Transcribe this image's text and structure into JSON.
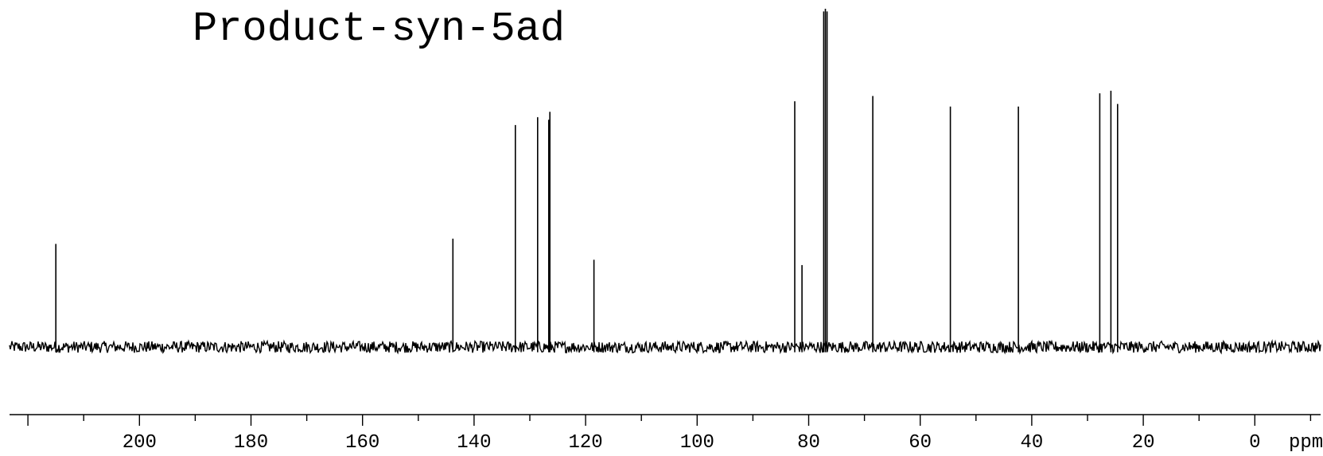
{
  "chart_data": {
    "type": "line",
    "title": "Product-syn-5ad",
    "xlabel": "ppm",
    "ylabel": "",
    "x_reversed": true,
    "xlim": [
      223.3,
      -11.8
    ],
    "ylim": [
      -0.2,
      1.3
    ],
    "grid": false,
    "legend": "none",
    "major_ticks": [
      200,
      180,
      160,
      140,
      120,
      100,
      80,
      60,
      40,
      20,
      0
    ],
    "tick_labels": [
      "200",
      "180",
      "160",
      "140",
      "120",
      "100",
      "80",
      "60",
      "40",
      "20",
      "0"
    ],
    "minor_tick_step": 10,
    "series": [
      {
        "peaks": [
          {
            "ppm": 215.0,
            "intensity": 0.39
          },
          {
            "ppm": 143.8,
            "intensity": 0.41
          },
          {
            "ppm": 132.6,
            "intensity": 0.84
          },
          {
            "ppm": 128.6,
            "intensity": 0.87
          },
          {
            "ppm": 126.6,
            "intensity": 0.86
          },
          {
            "ppm": 126.4,
            "intensity": 0.89
          },
          {
            "ppm": 118.5,
            "intensity": 0.33
          },
          {
            "ppm": 82.5,
            "intensity": 0.93
          },
          {
            "ppm": 81.2,
            "intensity": 0.31
          },
          {
            "ppm": 77.3,
            "intensity": 1.27
          },
          {
            "ppm": 77.0,
            "intensity": 1.28
          },
          {
            "ppm": 76.7,
            "intensity": 1.27
          },
          {
            "ppm": 68.5,
            "intensity": 0.95
          },
          {
            "ppm": 54.6,
            "intensity": 0.91
          },
          {
            "ppm": 42.4,
            "intensity": 0.91
          },
          {
            "ppm": 27.8,
            "intensity": 0.96
          },
          {
            "ppm": 25.8,
            "intensity": 0.97
          },
          {
            "ppm": 24.6,
            "intensity": 0.92
          }
        ],
        "baseline": 0,
        "noise_amplitude": 0.022
      }
    ]
  }
}
